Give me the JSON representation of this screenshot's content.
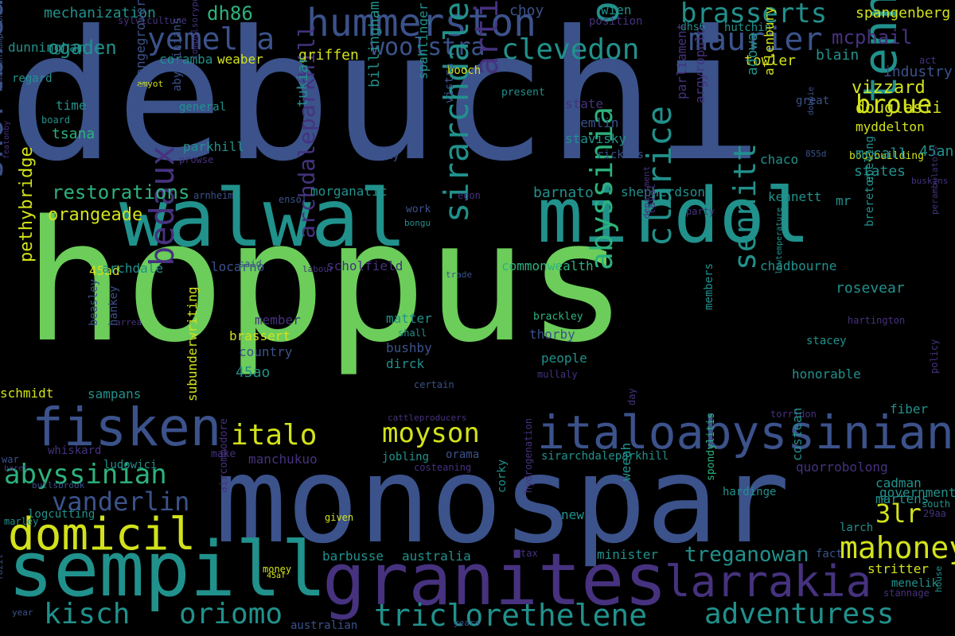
{
  "background": "#000000",
  "palette": {
    "green": "#6ccd5a",
    "yellow": "#d2e21b",
    "teal": "#21918c",
    "tealgreen": "#2db27d",
    "steel": "#3b528b",
    "blue": "#31688e",
    "indigo": "#46327e",
    "purple": "#440154"
  },
  "words": [
    "debuchi",
    "hoppus",
    "monospar",
    "walwal",
    "mirdol",
    "sempill",
    "granites",
    "fisken",
    "italoabyssinian",
    "hummerston",
    "domicil",
    "larrakia",
    "tennants",
    "overbeck",
    "maurier",
    "yemelba",
    "brasserts",
    "clevedon",
    "woolstra",
    "broue",
    "italo",
    "moyson",
    "abyssinian",
    "vanderlin",
    "shortbread",
    "bedaux",
    "sirarchdale",
    "article16",
    "abyssinia",
    "clarice",
    "sennitt",
    "mahoney",
    "3lr",
    "triclorethelene",
    "adventuress",
    "kisch",
    "oriomo",
    "treganowan",
    "restorations",
    "orangeade",
    "archdaleparkhill",
    "pethybridge",
    "mcphail",
    "vizzard",
    "douglasii",
    "industry",
    "spangenberg",
    "dh86",
    "ogaden",
    "mechanization",
    "choy",
    "wien",
    "position",
    "dunningham",
    "coramba",
    "weaber",
    "griffen",
    "blain",
    "towler",
    "regard",
    "sylviculture",
    "amyot",
    "booch",
    "present",
    "dhs6",
    "hutchin",
    "act",
    "time",
    "board",
    "tsana",
    "general",
    "orangegrowers",
    "abyssinians",
    "tukiar",
    "billingham",
    "spahlinger",
    "vistra",
    "state",
    "fremlin",
    "stavisky",
    "rickets",
    "parkhill",
    "argyropulo",
    "parliament",
    "adowa",
    "allenbury",
    "great",
    "myddelton",
    "bodybuilding",
    "45an",
    "mccall",
    "states",
    "chaco",
    "855d",
    "dobbie",
    "buskins",
    "homeconsumption",
    "compulsorypooling",
    "featonby",
    "prowse",
    "say",
    "arnheim",
    "ensol",
    "egon",
    "morganatic",
    "barnato",
    "shepherdson",
    "kennett",
    "mr",
    "work",
    "bongu",
    "said",
    "labour",
    "laval",
    "ebeling",
    "brereton",
    "party",
    "department",
    "perambulators",
    "45ad",
    "archdale",
    "locarno",
    "scholfield",
    "trade",
    "commonwealth",
    "chadbourne",
    "lowtemperature",
    "member",
    "arrea",
    "matter",
    "shall",
    "brackley",
    "rosevear",
    "hartington",
    "beasley",
    "hankey",
    "brassert",
    "country",
    "bushby",
    "dirck",
    "thorby",
    "people",
    "members",
    "stacey",
    "45ao",
    "certain",
    "mullaly",
    "honorable",
    "schmidt",
    "sampans",
    "torridon",
    "fiber",
    "policy",
    "subunderwriting",
    "cattleproducers",
    "day",
    "war",
    "baret",
    "whiskard",
    "ludowici",
    "make",
    "manchukuo",
    "orama",
    "jobling",
    "costeaning",
    "sirarchdaleparkhill",
    "quorrobolong",
    "cadman",
    "martens",
    "bullsbrook",
    "government",
    "marley",
    "logcutting",
    "given",
    "corky",
    "new",
    "spondylitis",
    "hardinge",
    "costean",
    "south",
    "weeah",
    "larch",
    "29aa",
    "aircommodore",
    "barbusse",
    "australia",
    "minister",
    "fact",
    "45af",
    "money",
    "hydrogenation",
    "tax",
    "stritter",
    "menelik",
    "stannage",
    "fazil",
    "year",
    "australian",
    "years",
    "house"
  ]
}
